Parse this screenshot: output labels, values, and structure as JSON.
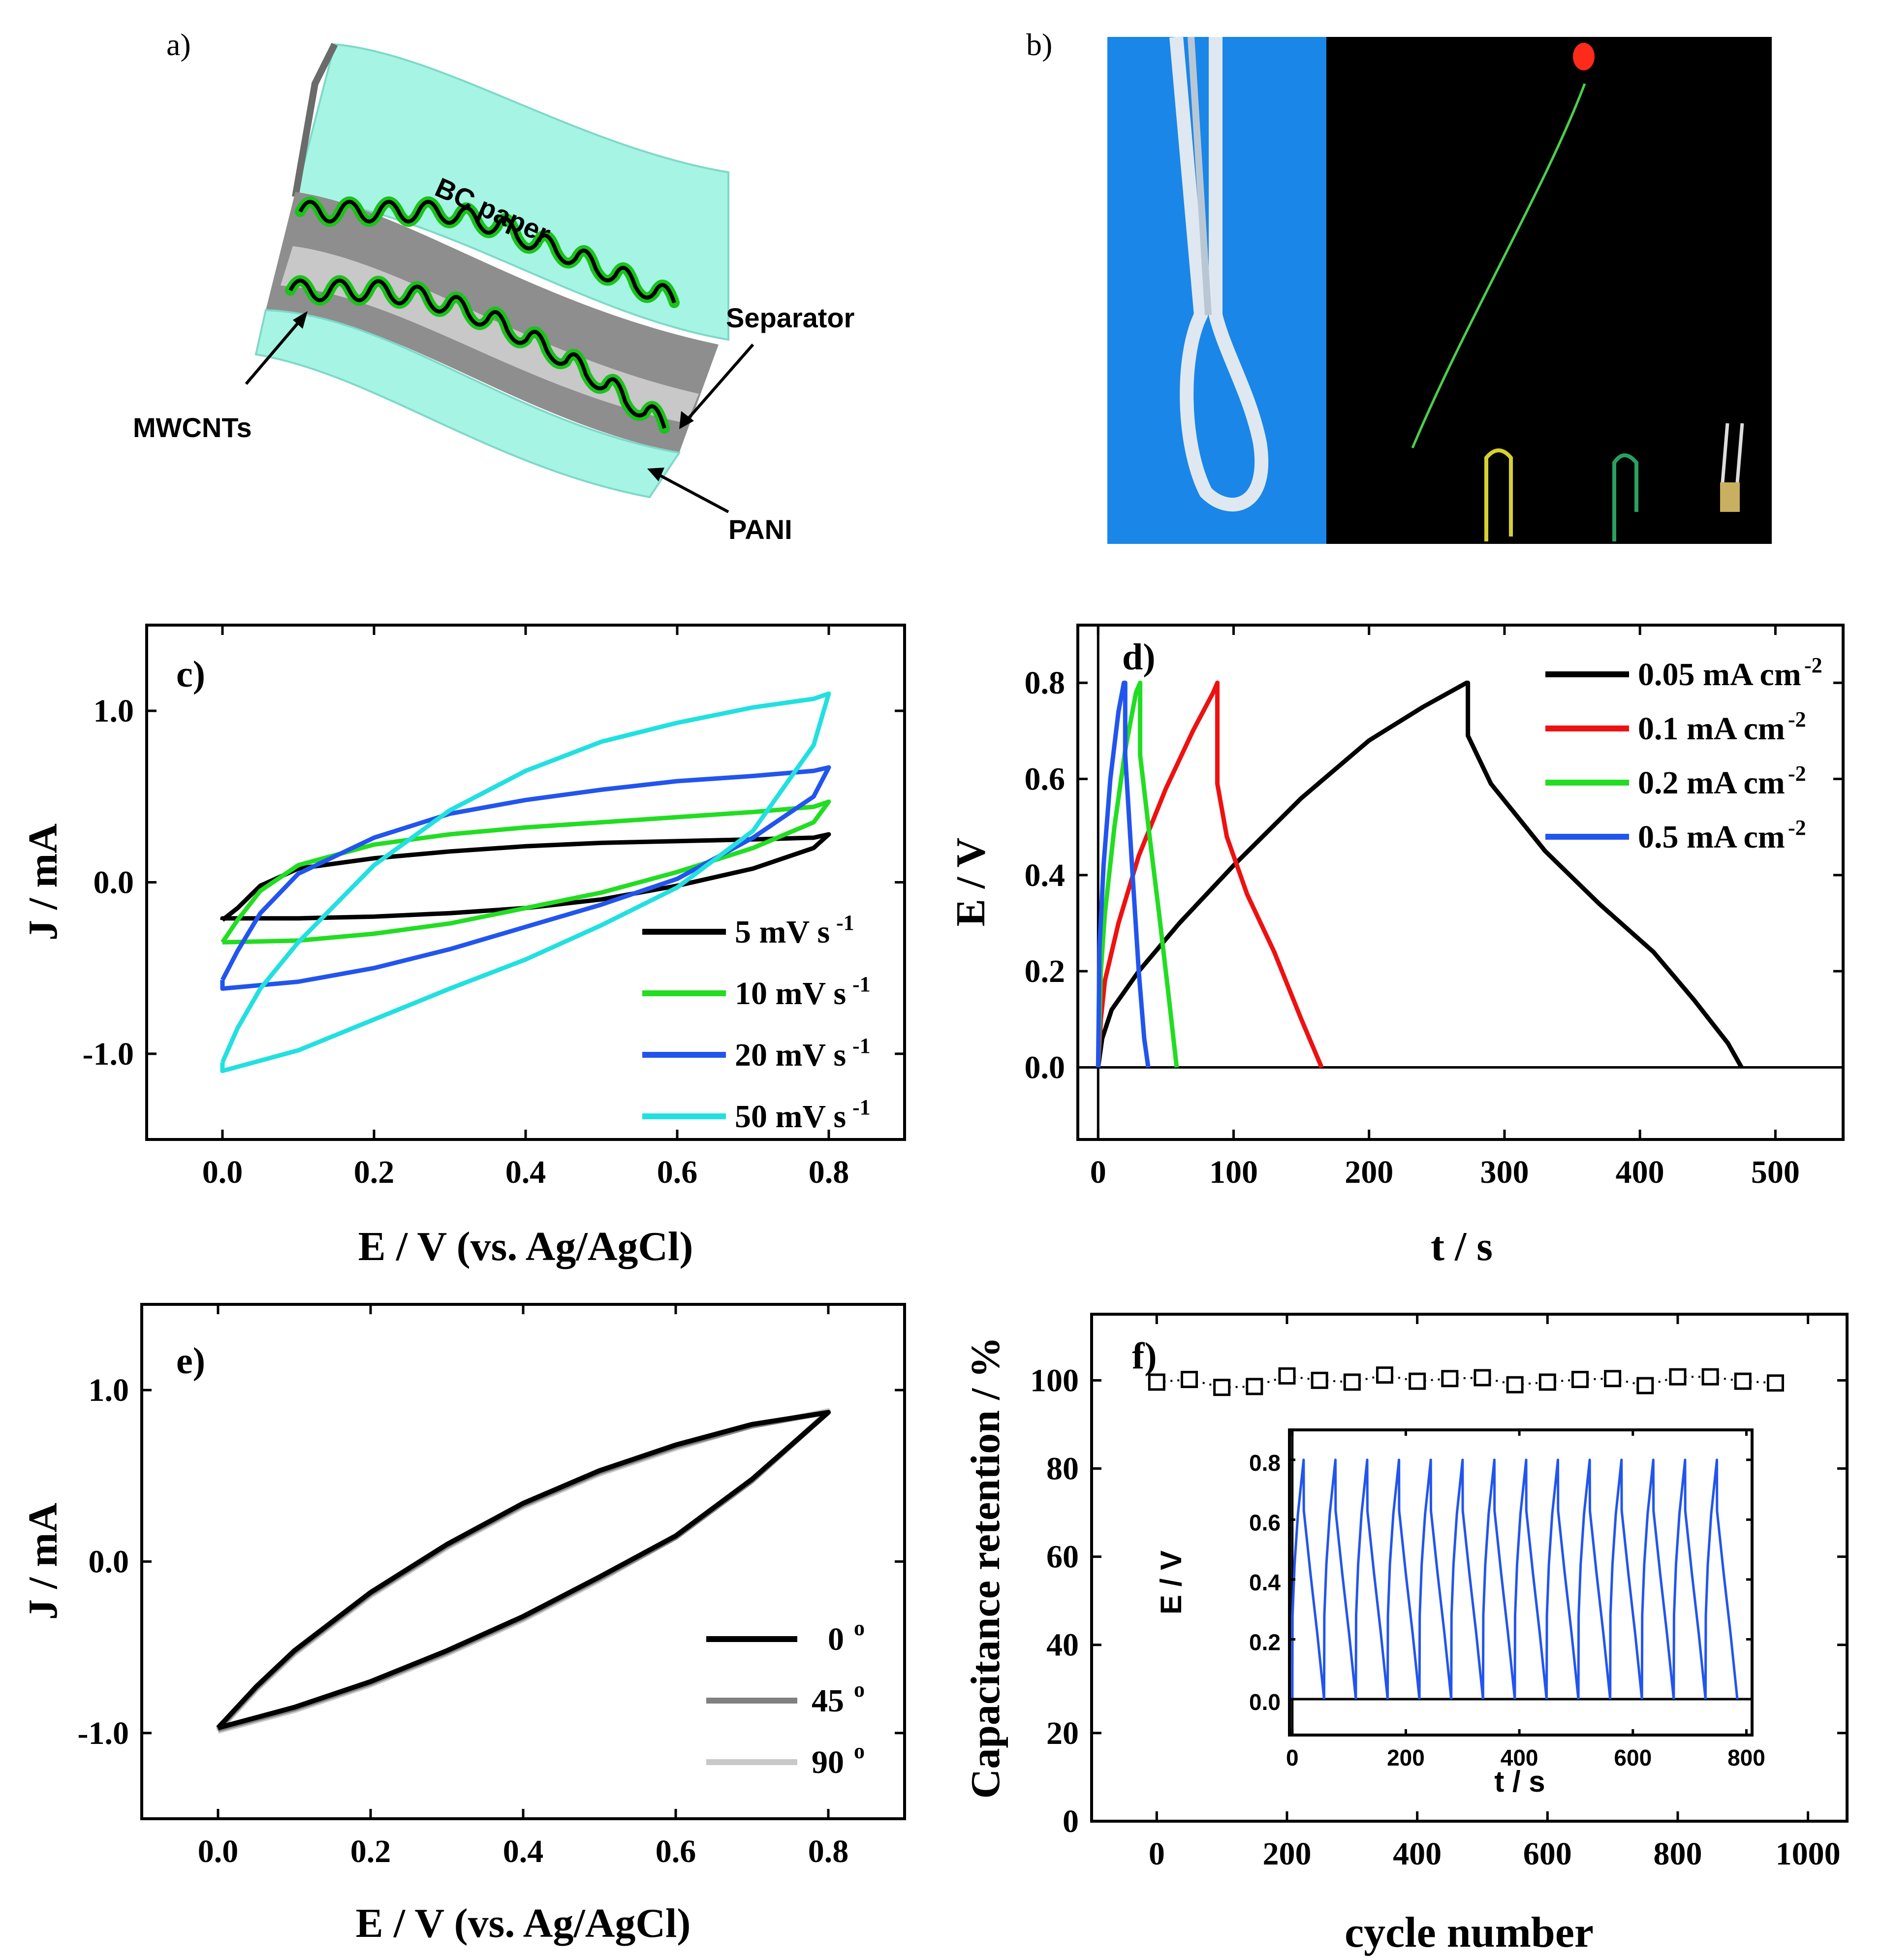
{
  "panels": {
    "a": "a)",
    "b": "b)",
    "c": "c)",
    "d": "d)",
    "e": "e)",
    "f": "f)"
  },
  "diagram": {
    "paper_label": "BC paper",
    "separator_label": "Separator",
    "mwcnts_label": "MWCNTs",
    "pani_label": "PANI",
    "colors": {
      "paper": "#a6f5e4",
      "separator": "#8e8e8e",
      "wave": "#18c418"
    }
  },
  "photo": {
    "left_bg": "#1a86e8",
    "right_bg": "#000000"
  },
  "chart_data": [
    {
      "panel": "c",
      "type": "line",
      "xlabel": "E / V (vs. Ag/AgCl)",
      "ylabel": "J / mA",
      "xlim": [
        -0.1,
        0.9
      ],
      "ylim": [
        -1.5,
        1.5
      ],
      "xticks": [
        0.0,
        0.2,
        0.4,
        0.6,
        0.8
      ],
      "xtick_labels": [
        "0.0",
        "0.2",
        "0.4",
        "0.6",
        "0.8"
      ],
      "yticks": [
        -1.0,
        0.0,
        1.0
      ],
      "ytick_labels": [
        "-1.0",
        "0.0",
        "1.0"
      ],
      "legend_position": "bottom-right",
      "series": [
        {
          "name": "5 mV s",
          "sup": "-1",
          "color": "#000000",
          "x": [
            0.0,
            0.02,
            0.05,
            0.1,
            0.2,
            0.3,
            0.4,
            0.5,
            0.6,
            0.7,
            0.78,
            0.8,
            0.78,
            0.7,
            0.6,
            0.5,
            0.4,
            0.3,
            0.2,
            0.1,
            0.0,
            0.0
          ],
          "y": [
            -0.22,
            -0.15,
            -0.02,
            0.08,
            0.14,
            0.18,
            0.21,
            0.23,
            0.24,
            0.25,
            0.26,
            0.28,
            0.2,
            0.08,
            -0.02,
            -0.1,
            -0.15,
            -0.18,
            -0.2,
            -0.21,
            -0.21,
            -0.22
          ]
        },
        {
          "name": "10 mV s",
          "sup": "-1",
          "color": "#22dd22",
          "x": [
            0.0,
            0.02,
            0.05,
            0.1,
            0.2,
            0.3,
            0.4,
            0.5,
            0.6,
            0.7,
            0.78,
            0.8,
            0.78,
            0.7,
            0.6,
            0.5,
            0.4,
            0.3,
            0.2,
            0.1,
            0.0,
            0.0
          ],
          "y": [
            -0.35,
            -0.22,
            -0.05,
            0.1,
            0.22,
            0.28,
            0.32,
            0.35,
            0.38,
            0.41,
            0.44,
            0.47,
            0.35,
            0.2,
            0.06,
            -0.06,
            -0.15,
            -0.24,
            -0.3,
            -0.34,
            -0.35,
            -0.35
          ]
        },
        {
          "name": "20 mV s",
          "sup": "-1",
          "color": "#2255ee",
          "x": [
            0.0,
            0.02,
            0.05,
            0.1,
            0.2,
            0.3,
            0.4,
            0.5,
            0.6,
            0.7,
            0.78,
            0.8,
            0.78,
            0.7,
            0.6,
            0.5,
            0.4,
            0.3,
            0.2,
            0.1,
            0.0,
            0.0
          ],
          "y": [
            -0.57,
            -0.4,
            -0.18,
            0.05,
            0.26,
            0.4,
            0.48,
            0.54,
            0.59,
            0.62,
            0.65,
            0.67,
            0.5,
            0.26,
            0.02,
            -0.13,
            -0.26,
            -0.39,
            -0.5,
            -0.58,
            -0.62,
            -0.57
          ]
        },
        {
          "name": "50 mV s",
          "sup": "-1",
          "color": "#22e0e0",
          "x": [
            0.0,
            0.02,
            0.05,
            0.1,
            0.2,
            0.3,
            0.4,
            0.5,
            0.6,
            0.7,
            0.78,
            0.8,
            0.78,
            0.7,
            0.6,
            0.5,
            0.4,
            0.3,
            0.2,
            0.1,
            0.0,
            0.0
          ],
          "y": [
            -1.05,
            -0.85,
            -0.62,
            -0.35,
            0.1,
            0.42,
            0.65,
            0.82,
            0.93,
            1.02,
            1.07,
            1.1,
            0.8,
            0.3,
            -0.03,
            -0.25,
            -0.45,
            -0.62,
            -0.8,
            -0.98,
            -1.1,
            -1.05
          ]
        }
      ]
    },
    {
      "panel": "d",
      "type": "line",
      "xlabel": "t / s",
      "ylabel": "E / V",
      "xlim": [
        -15,
        550
      ],
      "ylim": [
        -0.15,
        0.92
      ],
      "xticks": [
        0,
        100,
        200,
        300,
        400,
        500
      ],
      "xtick_labels": [
        "0",
        "100",
        "200",
        "300",
        "400",
        "500"
      ],
      "yticks": [
        0.0,
        0.2,
        0.4,
        0.6,
        0.8
      ],
      "ytick_labels": [
        "0.0",
        "0.2",
        "0.4",
        "0.6",
        "0.8"
      ],
      "legend_position": "top-right",
      "series": [
        {
          "name": "0.05 mA cm",
          "sup": "-2",
          "color": "#000000",
          "x": [
            0,
            3,
            10,
            30,
            60,
            100,
            150,
            200,
            240,
            272,
            273,
            273,
            290,
            330,
            370,
            410,
            440,
            465,
            475
          ],
          "y": [
            0.0,
            0.06,
            0.12,
            0.2,
            0.3,
            0.42,
            0.56,
            0.68,
            0.75,
            0.8,
            0.8,
            0.69,
            0.59,
            0.45,
            0.34,
            0.24,
            0.14,
            0.05,
            0.0
          ]
        },
        {
          "name": "0.1 mA cm",
          "sup": "-2",
          "color": "#ee1111",
          "x": [
            0,
            2,
            5,
            15,
            30,
            50,
            70,
            85,
            88,
            88,
            95,
            110,
            130,
            150,
            165
          ],
          "y": [
            0.0,
            0.1,
            0.18,
            0.3,
            0.44,
            0.58,
            0.7,
            0.78,
            0.8,
            0.59,
            0.48,
            0.36,
            0.24,
            0.1,
            0.0
          ]
        },
        {
          "name": "0.2 mA cm",
          "sup": "-2",
          "color": "#22dd22",
          "x": [
            0,
            2,
            5,
            12,
            20,
            28,
            31,
            31,
            38,
            45,
            52,
            58
          ],
          "y": [
            0.0,
            0.2,
            0.32,
            0.5,
            0.66,
            0.78,
            0.8,
            0.65,
            0.48,
            0.32,
            0.15,
            0.0
          ]
        },
        {
          "name": "0.5 mA cm",
          "sup": "-2",
          "color": "#2255ee",
          "x": [
            0,
            1,
            4,
            9,
            15,
            19,
            20,
            20,
            25,
            30,
            34,
            37
          ],
          "y": [
            0.0,
            0.25,
            0.42,
            0.6,
            0.74,
            0.8,
            0.8,
            0.65,
            0.42,
            0.2,
            0.06,
            0.0
          ]
        }
      ]
    },
    {
      "panel": "e",
      "type": "line",
      "xlabel": "E / V (vs. Ag/AgCl)",
      "ylabel": "J / mA",
      "xlim": [
        -0.1,
        0.9
      ],
      "ylim": [
        -1.5,
        1.5
      ],
      "xticks": [
        0.0,
        0.2,
        0.4,
        0.6,
        0.8
      ],
      "xtick_labels": [
        "0.0",
        "0.2",
        "0.4",
        "0.6",
        "0.8"
      ],
      "yticks": [
        -1.0,
        0.0,
        1.0
      ],
      "ytick_labels": [
        "-1.0",
        "0.0",
        "1.0"
      ],
      "legend_position": "bottom-right",
      "series": [
        {
          "name": "90",
          "sup": "o",
          "color": "#c8c8c8",
          "x": [
            0.0,
            0.05,
            0.1,
            0.2,
            0.3,
            0.4,
            0.5,
            0.6,
            0.7,
            0.8,
            0.7,
            0.6,
            0.5,
            0.4,
            0.3,
            0.2,
            0.1,
            0.0
          ],
          "y": [
            -0.99,
            -0.75,
            -0.54,
            -0.2,
            0.08,
            0.32,
            0.51,
            0.66,
            0.79,
            0.88,
            0.47,
            0.14,
            -0.11,
            -0.34,
            -0.54,
            -0.72,
            -0.87,
            -0.99
          ]
        },
        {
          "name": "45",
          "sup": "o",
          "color": "#808080",
          "x": [
            0.0,
            0.05,
            0.1,
            0.2,
            0.3,
            0.4,
            0.5,
            0.6,
            0.7,
            0.8,
            0.7,
            0.6,
            0.5,
            0.4,
            0.3,
            0.2,
            0.1,
            0.0
          ],
          "y": [
            -0.98,
            -0.74,
            -0.53,
            -0.19,
            0.09,
            0.33,
            0.52,
            0.67,
            0.79,
            0.87,
            0.47,
            0.14,
            -0.1,
            -0.33,
            -0.53,
            -0.71,
            -0.86,
            -0.98
          ]
        },
        {
          "name": "0",
          "sup": "o",
          "color": "#000000",
          "x": [
            0.0,
            0.05,
            0.1,
            0.2,
            0.3,
            0.4,
            0.5,
            0.6,
            0.7,
            0.8,
            0.7,
            0.6,
            0.5,
            0.4,
            0.3,
            0.2,
            0.1,
            0.0
          ],
          "y": [
            -0.97,
            -0.73,
            -0.52,
            -0.18,
            0.1,
            0.34,
            0.53,
            0.68,
            0.8,
            0.87,
            0.48,
            0.15,
            -0.09,
            -0.32,
            -0.52,
            -0.7,
            -0.85,
            -0.97
          ]
        }
      ]
    },
    {
      "panel": "f",
      "type": "scatter",
      "xlabel": "cycle number",
      "ylabel": "Capacitance retention / %",
      "xlim": [
        -100,
        1060
      ],
      "ylim": [
        0,
        115
      ],
      "xticks": [
        0,
        200,
        400,
        600,
        800,
        1000
      ],
      "xtick_labels": [
        "0",
        "200",
        "400",
        "600",
        "800",
        "1000"
      ],
      "yticks": [
        0,
        20,
        40,
        60,
        80,
        100
      ],
      "ytick_labels": [
        "0",
        "20",
        "40",
        "60",
        "80",
        "100"
      ],
      "marker": "open-square",
      "series": [
        {
          "color": "#000000",
          "x": [
            0,
            50,
            100,
            150,
            200,
            250,
            300,
            350,
            400,
            450,
            500,
            550,
            600,
            650,
            700,
            750,
            800,
            850,
            900,
            950
          ],
          "y": [
            99.6,
            100.2,
            98.4,
            98.6,
            101.0,
            100.0,
            99.6,
            101.2,
            99.8,
            100.4,
            100.6,
            99.0,
            99.6,
            100.2,
            100.4,
            98.8,
            100.8,
            100.8,
            99.8,
            99.4
          ]
        }
      ]
    },
    {
      "panel": "f-inset",
      "type": "line",
      "xlabel": "t / s",
      "ylabel": "E / V",
      "xlim": [
        -5,
        810
      ],
      "ylim": [
        -0.12,
        0.9
      ],
      "xticks": [
        0,
        200,
        400,
        600,
        800
      ],
      "xtick_labels": [
        "0",
        "200",
        "400",
        "600",
        "800"
      ],
      "yticks": [
        0.0,
        0.2,
        0.4,
        0.6,
        0.8
      ],
      "ytick_labels": [
        "0.0",
        "0.2",
        "0.4",
        "0.6",
        "0.8"
      ],
      "series": [
        {
          "color": "#2255ee",
          "cycles": 14,
          "period": 56,
          "charge_time": 20,
          "peak": 0.8,
          "ir_drop": 0.63
        }
      ]
    }
  ]
}
